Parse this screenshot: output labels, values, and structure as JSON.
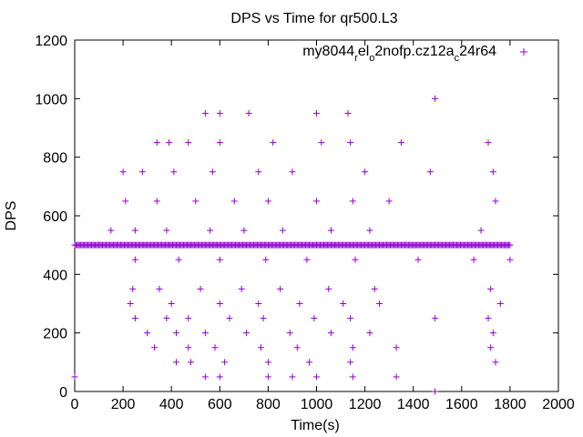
{
  "chart_data": {
    "type": "scatter",
    "title": "DPS vs Time for qr500.L3",
    "xlabel": "Time(s)",
    "ylabel": "DPS",
    "xlim": [
      0,
      2000
    ],
    "ylim": [
      0,
      1200
    ],
    "xticks": [
      "0",
      "200",
      "400",
      "600",
      "800",
      "1000",
      "1200",
      "1400",
      "1600",
      "1800",
      "2000"
    ],
    "yticks": [
      "0",
      "200",
      "400",
      "600",
      "800",
      "1000",
      "1200"
    ],
    "grid": false,
    "legend_position": "top-right",
    "legend": {
      "base": "my8044",
      "sub1": "r",
      "mid1": "el",
      "sub2": "o",
      "mid2": "2nofp.cz12a",
      "sub3": "c",
      "tail": "24r64"
    },
    "marker_color": "#9400d3",
    "series": [
      {
        "points": [
          [
            0,
            50
          ],
          [
            1490,
            0
          ],
          [
            1490,
            1000
          ],
          [
            540,
            950
          ],
          [
            1000,
            950
          ],
          [
            1130,
            950
          ],
          [
            600,
            950
          ],
          [
            720,
            950
          ],
          [
            340,
            850
          ],
          [
            390,
            850
          ],
          [
            470,
            850
          ],
          [
            600,
            850
          ],
          [
            820,
            850
          ],
          [
            1020,
            850
          ],
          [
            1140,
            850
          ],
          [
            1350,
            850
          ],
          [
            1710,
            850
          ],
          [
            200,
            750
          ],
          [
            280,
            750
          ],
          [
            410,
            750
          ],
          [
            570,
            750
          ],
          [
            760,
            750
          ],
          [
            900,
            750
          ],
          [
            1200,
            750
          ],
          [
            1470,
            750
          ],
          [
            1730,
            750
          ],
          [
            210,
            650
          ],
          [
            340,
            650
          ],
          [
            500,
            650
          ],
          [
            660,
            650
          ],
          [
            800,
            650
          ],
          [
            1000,
            650
          ],
          [
            1150,
            650
          ],
          [
            1300,
            650
          ],
          [
            1740,
            650
          ],
          [
            150,
            550
          ],
          [
            250,
            550
          ],
          [
            380,
            550
          ],
          [
            560,
            550
          ],
          [
            700,
            550
          ],
          [
            860,
            550
          ],
          [
            1060,
            550
          ],
          [
            1220,
            550
          ],
          [
            1680,
            550
          ],
          [
            250,
            450
          ],
          [
            430,
            450
          ],
          [
            600,
            450
          ],
          [
            790,
            450
          ],
          [
            960,
            450
          ],
          [
            1160,
            450
          ],
          [
            1420,
            450
          ],
          [
            1650,
            450
          ],
          [
            1800,
            450
          ],
          [
            240,
            350
          ],
          [
            350,
            350
          ],
          [
            520,
            350
          ],
          [
            690,
            350
          ],
          [
            850,
            350
          ],
          [
            1050,
            350
          ],
          [
            1240,
            350
          ],
          [
            1720,
            350
          ],
          [
            230,
            300
          ],
          [
            400,
            300
          ],
          [
            600,
            300
          ],
          [
            760,
            300
          ],
          [
            930,
            300
          ],
          [
            1110,
            300
          ],
          [
            1260,
            300
          ],
          [
            1760,
            300
          ],
          [
            250,
            250
          ],
          [
            380,
            250
          ],
          [
            470,
            250
          ],
          [
            640,
            250
          ],
          [
            780,
            250
          ],
          [
            990,
            250
          ],
          [
            1140,
            250
          ],
          [
            1490,
            250
          ],
          [
            1710,
            250
          ],
          [
            300,
            200
          ],
          [
            420,
            200
          ],
          [
            540,
            200
          ],
          [
            710,
            200
          ],
          [
            890,
            200
          ],
          [
            1060,
            200
          ],
          [
            1220,
            200
          ],
          [
            1730,
            200
          ],
          [
            330,
            150
          ],
          [
            470,
            150
          ],
          [
            580,
            150
          ],
          [
            770,
            150
          ],
          [
            920,
            150
          ],
          [
            1150,
            150
          ],
          [
            1330,
            150
          ],
          [
            1720,
            150
          ],
          [
            420,
            100
          ],
          [
            480,
            100
          ],
          [
            620,
            100
          ],
          [
            800,
            100
          ],
          [
            970,
            100
          ],
          [
            1140,
            100
          ],
          [
            1740,
            100
          ],
          [
            540,
            50
          ],
          [
            600,
            50
          ],
          [
            800,
            50
          ],
          [
            900,
            50
          ],
          [
            1000,
            50
          ],
          [
            1150,
            50
          ],
          [
            1330,
            50
          ]
        ],
        "dense_band": {
          "y": 500,
          "x_start": 0,
          "x_end": 1800,
          "step": 5
        }
      }
    ]
  }
}
